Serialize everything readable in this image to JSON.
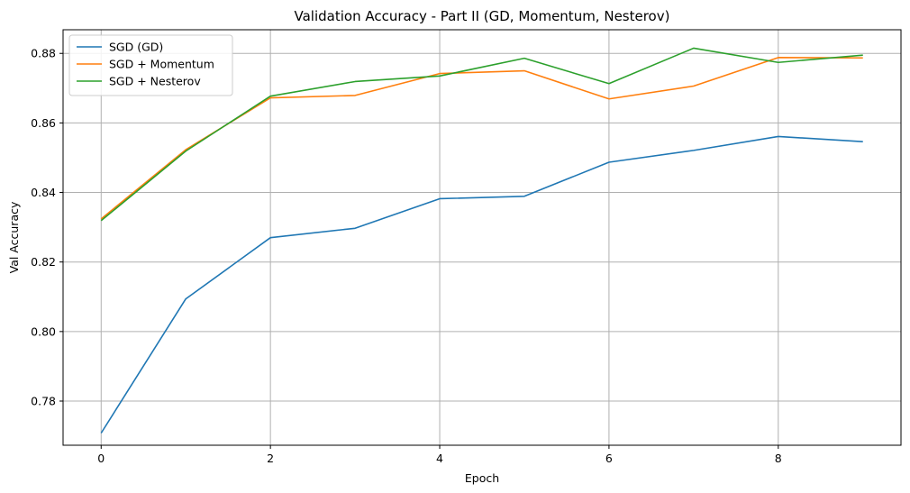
{
  "chart_data": {
    "type": "line",
    "title": "Validation Accuracy - Part II (GD, Momentum, Nesterov)",
    "xlabel": "Epoch",
    "ylabel": "Val Accuracy",
    "xlim": [
      -0.45,
      9.45
    ],
    "ylim": [
      0.7673,
      0.8868
    ],
    "x_ticks": [
      0,
      2,
      4,
      6,
      8
    ],
    "x_tick_labels": [
      "0",
      "2",
      "4",
      "6",
      "8"
    ],
    "y_ticks": [
      0.78,
      0.8,
      0.82,
      0.84,
      0.86,
      0.88
    ],
    "y_tick_labels": [
      "0.78",
      "0.80",
      "0.82",
      "0.84",
      "0.86",
      "0.88"
    ],
    "grid": true,
    "legend_position": "top-left",
    "x": [
      0,
      1,
      2,
      3,
      4,
      5,
      6,
      7,
      8,
      9
    ],
    "series": [
      {
        "name": "SGD (GD)",
        "color": "#1f77b4",
        "values": [
          0.7708,
          0.8094,
          0.827,
          0.8297,
          0.8382,
          0.8389,
          0.8487,
          0.8521,
          0.8561,
          0.8546
        ]
      },
      {
        "name": "SGD + Momentum",
        "color": "#ff7f0e",
        "values": [
          0.8324,
          0.8523,
          0.8672,
          0.8679,
          0.8742,
          0.875,
          0.8669,
          0.8706,
          0.8788,
          0.8787
        ]
      },
      {
        "name": "SGD + Nesterov",
        "color": "#2ca02c",
        "values": [
          0.8319,
          0.8519,
          0.8677,
          0.8719,
          0.8735,
          0.8786,
          0.8713,
          0.8815,
          0.8774,
          0.8795
        ]
      }
    ]
  }
}
